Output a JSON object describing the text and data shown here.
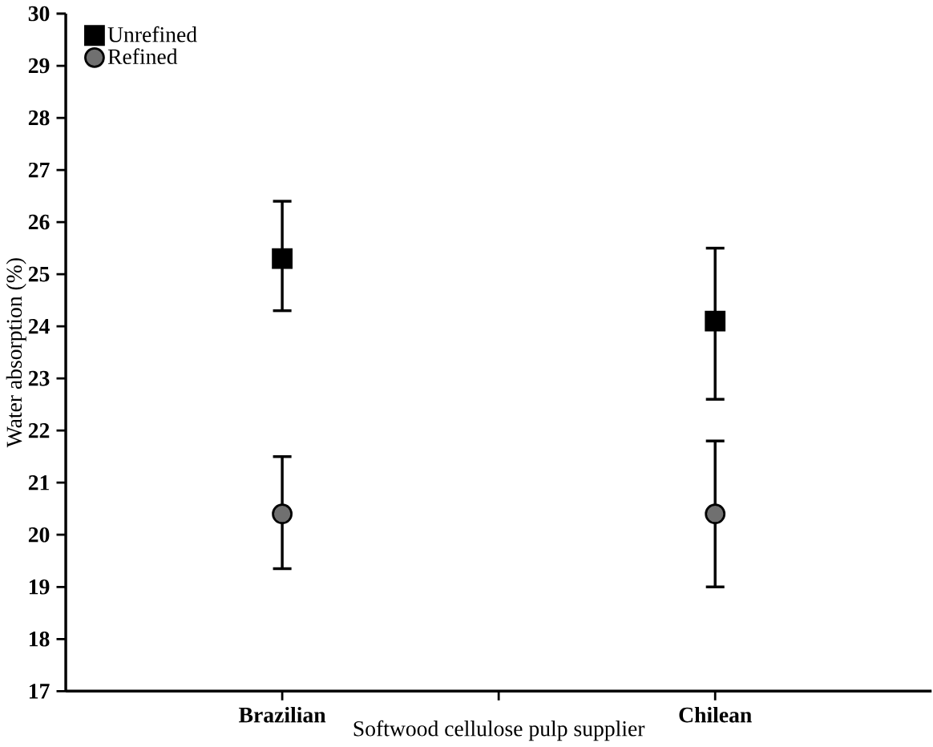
{
  "chart_data": {
    "type": "scatter",
    "xlabel": "Softwood cellulose pulp supplier",
    "ylabel": "Water absorption (%)",
    "categories": [
      "Brazilian",
      "Chilean"
    ],
    "series": [
      {
        "name": "Unrefined",
        "color": "#000000",
        "marker": "square",
        "values": [
          25.3,
          24.1
        ],
        "errors": [
          [
            24.3,
            26.4
          ],
          [
            22.6,
            25.5
          ]
        ]
      },
      {
        "name": "Refined",
        "color": "#707070",
        "marker": "circle",
        "values": [
          20.4,
          20.4
        ],
        "errors": [
          [
            19.35,
            21.5
          ],
          [
            19.0,
            21.8
          ]
        ]
      }
    ],
    "ylim": [
      17,
      30
    ],
    "yticks": [
      17,
      18,
      19,
      20,
      21,
      22,
      23,
      24,
      25,
      26,
      27,
      28,
      29,
      30
    ],
    "legend": "top left",
    "grid": false
  }
}
